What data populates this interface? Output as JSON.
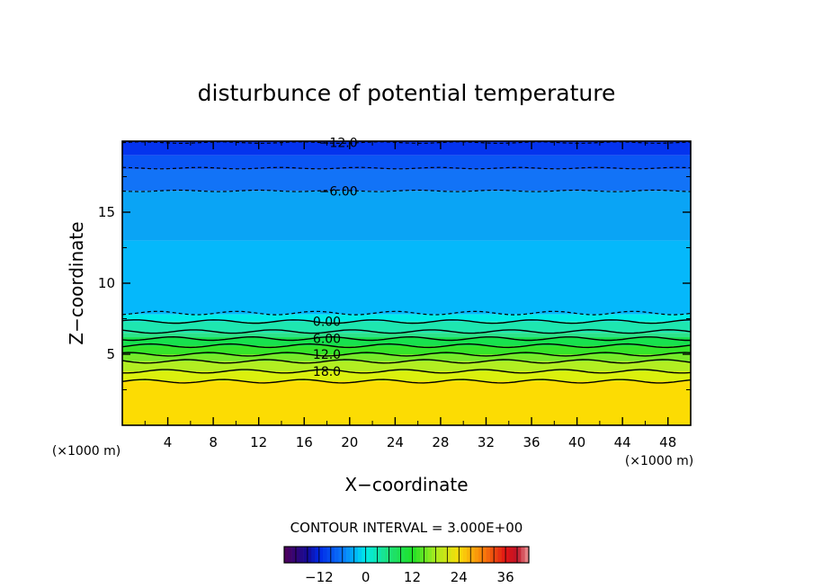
{
  "chart_data": {
    "type": "heatmap",
    "title": "disturbunce of potential temperature",
    "xlabel": "X−coordinate",
    "ylabel": "Z−coordinate",
    "x_unit": "(×1000 m)",
    "y_unit": "(×1000 m)",
    "xlim": [
      0,
      50
    ],
    "ylim": [
      0,
      20
    ],
    "x_ticks": [
      4,
      8,
      12,
      16,
      20,
      24,
      28,
      32,
      36,
      40,
      44,
      48
    ],
    "y_ticks": [
      5,
      10,
      15
    ],
    "contour_interval_text": "CONTOUR INTERVAL = 3.000E+00",
    "contour_interval": 3,
    "negative_contours_dashed": true,
    "bands": [
      {
        "z": [
          19.0,
          20.0
        ],
        "value": -13.5,
        "color": "#0433ee"
      },
      {
        "z": [
          18.0,
          19.0
        ],
        "value": -10.5,
        "color": "#0a55f4"
      },
      {
        "z": [
          16.5,
          18.0
        ],
        "value": -7.5,
        "color": "#1273f7"
      },
      {
        "z": [
          13.0,
          16.5
        ],
        "value": -4.5,
        "color": "#0aa4f5"
      },
      {
        "z": [
          7.8,
          13.0
        ],
        "value": -1.5,
        "color": "#05b8fb"
      },
      {
        "z": [
          7.3,
          7.8
        ],
        "value": 0.5,
        "color": "#00ece8"
      },
      {
        "z": [
          6.5,
          7.3
        ],
        "value": 3,
        "color": "#1ee6b0"
      },
      {
        "z": [
          6.2,
          6.5
        ],
        "value": 4.5,
        "color": "#2ce28a"
      },
      {
        "z": [
          5.6,
          6.2
        ],
        "value": 7.5,
        "color": "#17e14e"
      },
      {
        "z": [
          5.0,
          5.6
        ],
        "value": 10.5,
        "color": "#35e42a"
      },
      {
        "z": [
          4.5,
          5.0
        ],
        "value": 13.5,
        "color": "#77e92a"
      },
      {
        "z": [
          3.8,
          4.5
        ],
        "value": 16.5,
        "color": "#b2ee22"
      },
      {
        "z": [
          3.1,
          3.8
        ],
        "value": 19.5,
        "color": "#dbf00e"
      },
      {
        "z": [
          0.0,
          3.1
        ],
        "value": 22.5,
        "color": "#fcdc03"
      }
    ],
    "contours": [
      {
        "level": -12.0,
        "z": 19.9,
        "label": "−12.0",
        "label_x": 19,
        "dashed": true
      },
      {
        "level": -9.0,
        "z": 18.1,
        "label": "",
        "dashed": true
      },
      {
        "level": -6.0,
        "z": 16.5,
        "label": "−6.00",
        "label_x": 19,
        "dashed": true
      },
      {
        "level": -3.0,
        "z": 7.9,
        "label": "",
        "dashed": true
      },
      {
        "level": 0.0,
        "z": 7.3,
        "label": "0.00",
        "label_x": 18,
        "dashed": false
      },
      {
        "level": 3.0,
        "z": 6.6,
        "label": "",
        "dashed": false
      },
      {
        "level": 6.0,
        "z": 6.1,
        "label": "6.00",
        "label_x": 18,
        "dashed": false
      },
      {
        "level": 9.0,
        "z": 5.6,
        "label": "",
        "dashed": false
      },
      {
        "level": 12.0,
        "z": 5.0,
        "label": "12.0",
        "label_x": 18,
        "dashed": false
      },
      {
        "level": 15.0,
        "z": 4.5,
        "label": "",
        "dashed": false
      },
      {
        "level": 18.0,
        "z": 3.8,
        "label": "18.0",
        "label_x": 18,
        "dashed": false
      },
      {
        "level": 21.0,
        "z": 3.1,
        "label": "",
        "dashed": false
      }
    ],
    "colorbar": {
      "min": -21,
      "max": 42,
      "step": 3,
      "ticks": [
        -12,
        0,
        12,
        24,
        36
      ],
      "tick_labels": [
        "−12",
        "0",
        "12",
        "24",
        "36"
      ]
    }
  }
}
